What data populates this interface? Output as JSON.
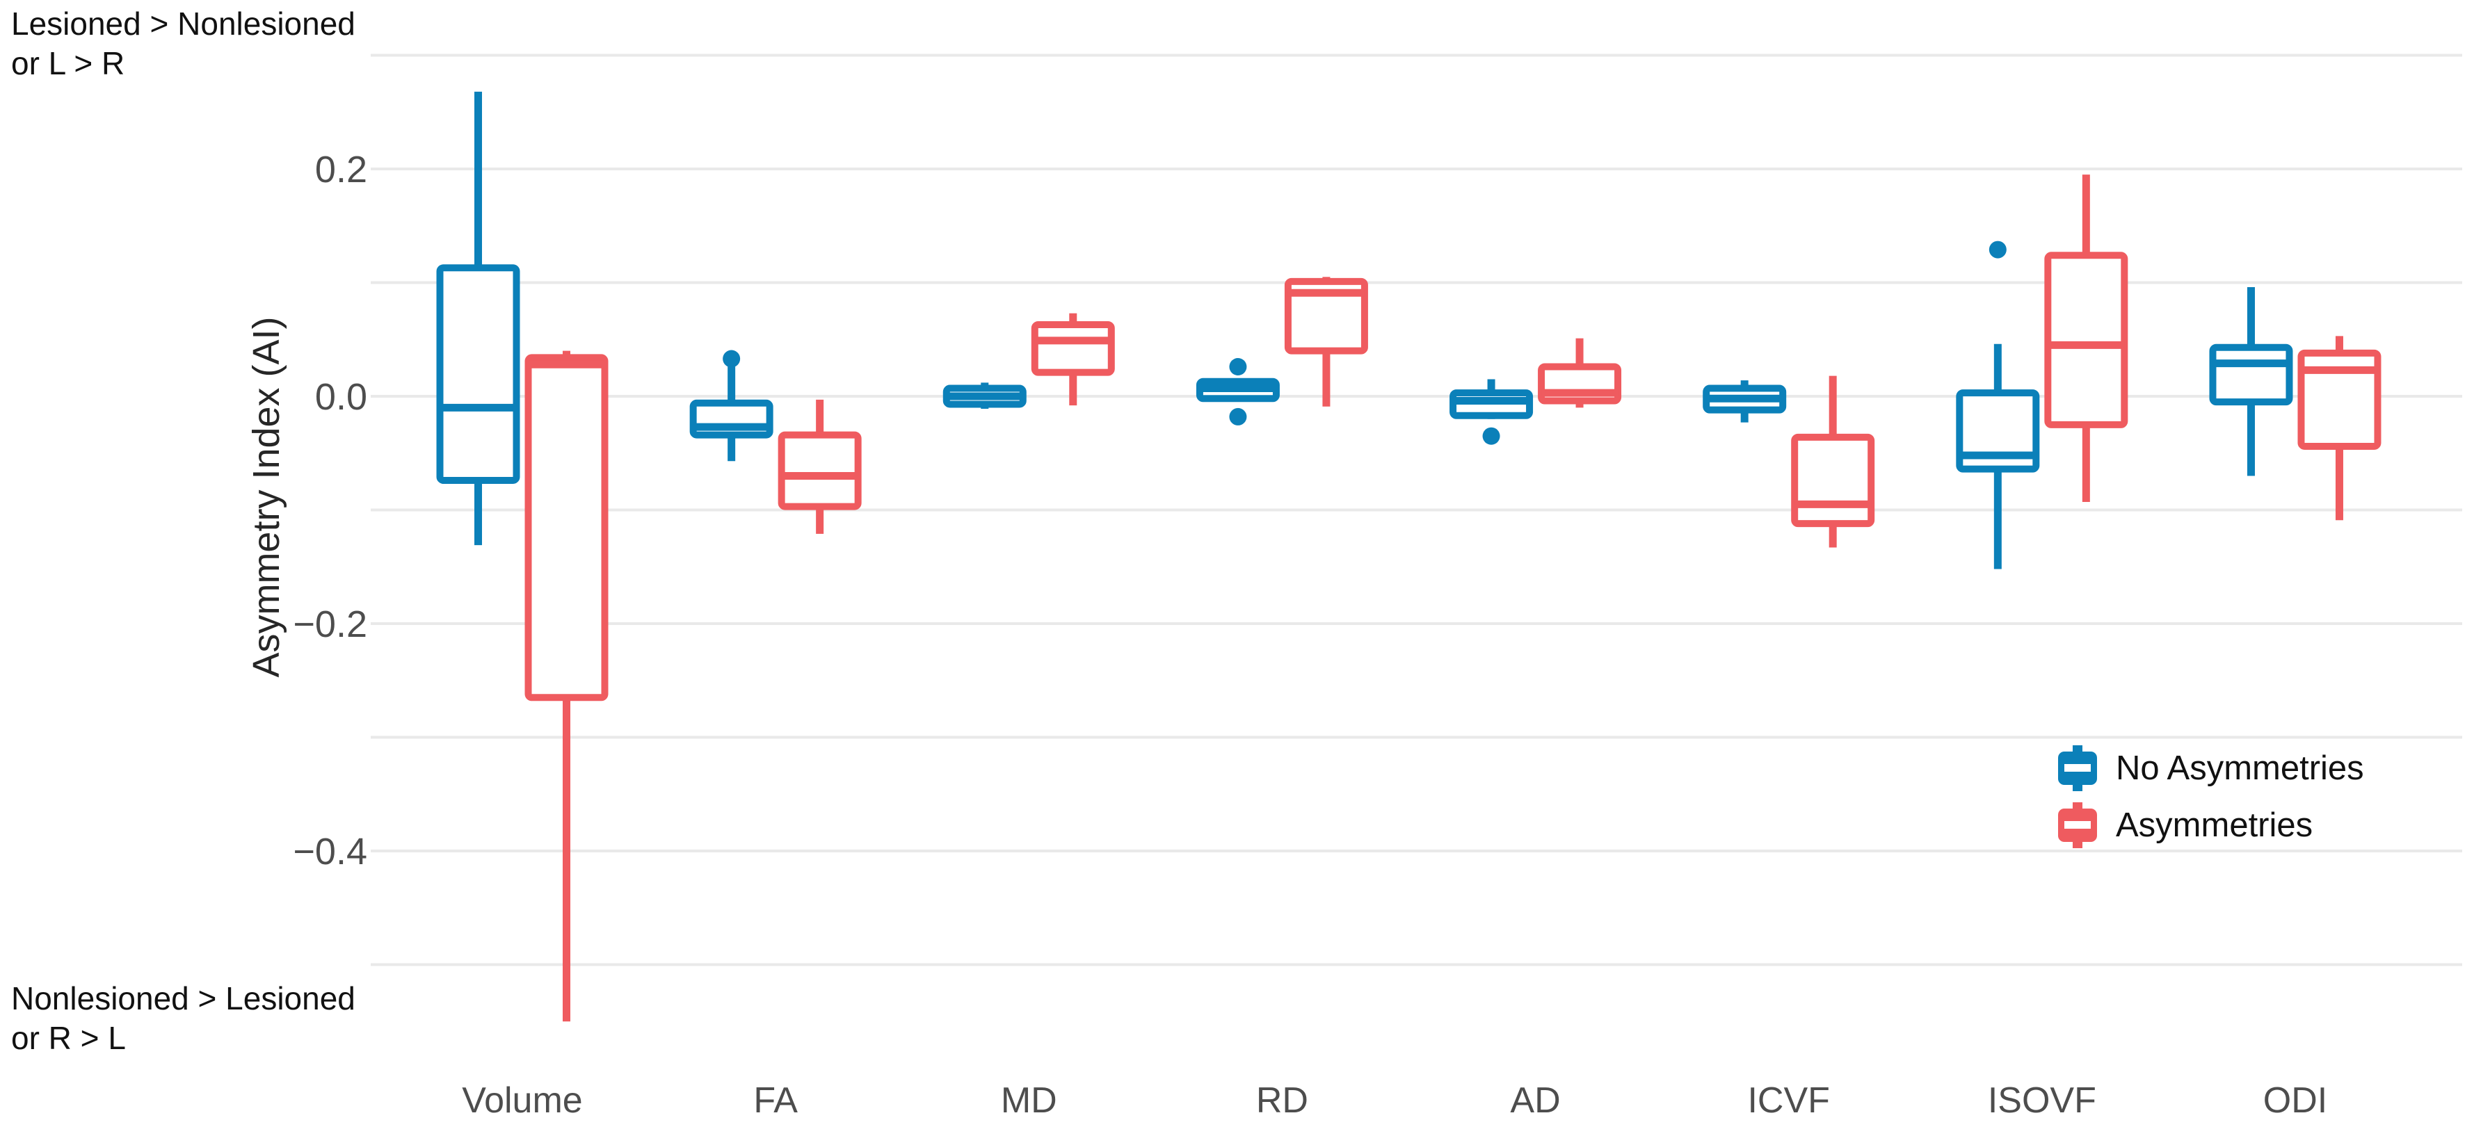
{
  "annotations": {
    "top_left_line1": "Lesioned > Nonlesioned",
    "top_left_line2": "or L > R",
    "bottom_left_line1": "Nonlesioned > Lesioned",
    "bottom_left_line2": "or R > L"
  },
  "legend": {
    "items": [
      {
        "label": "No Asymmetries",
        "color": "#0b80b9"
      },
      {
        "label": "Asymmetries",
        "color": "#ef5b5f"
      }
    ]
  },
  "colors": {
    "no_asymmetries": "#0b80b9",
    "asymmetries": "#ef5b5f",
    "gridline": "#e9e9e9",
    "axis_text": "#4d4d4d",
    "annotation_text": "#111111"
  },
  "chart_data": {
    "type": "boxplot",
    "title": "",
    "xlabel": "",
    "ylabel": "Asymmetry Index (AI)",
    "ylim": [
      -0.62,
      0.31
    ],
    "grid": true,
    "gridline_values": [
      0.3,
      0.2,
      0.1,
      0.0,
      -0.1,
      -0.2,
      -0.3,
      -0.4,
      -0.5
    ],
    "yticks": [
      {
        "value": 0.2,
        "label": "0.2"
      },
      {
        "value": 0.0,
        "label": "0.0"
      },
      {
        "value": -0.2,
        "label": "−0.2"
      },
      {
        "value": -0.4,
        "label": "−0.4"
      }
    ],
    "categories": [
      "Volume",
      "FA",
      "MD",
      "RD",
      "AD",
      "ICVF",
      "ISOVF",
      "ODI"
    ],
    "legend_position": "right-middle",
    "series": [
      {
        "name": "No Asymmetries",
        "color": "#0b80b9",
        "boxes": [
          {
            "category": "Volume",
            "whisker_low": -0.131,
            "q1": -0.074,
            "median": -0.01,
            "q3": 0.113,
            "whisker_high": 0.268,
            "outliers": []
          },
          {
            "category": "FA",
            "whisker_low": -0.057,
            "q1": -0.034,
            "median": -0.027,
            "q3": -0.006,
            "whisker_high": 0.026,
            "outliers": [
              0.033
            ]
          },
          {
            "category": "MD",
            "whisker_low": -0.011,
            "q1": -0.007,
            "median": 0.0,
            "q3": 0.007,
            "whisker_high": 0.012,
            "outliers": []
          },
          {
            "category": "RD",
            "whisker_low": -0.004,
            "q1": -0.002,
            "median": 0.007,
            "q3": 0.013,
            "whisker_high": 0.015,
            "outliers": [
              0.026,
              -0.018
            ]
          },
          {
            "category": "AD",
            "whisker_low": -0.02,
            "q1": -0.017,
            "median": -0.004,
            "q3": 0.003,
            "whisker_high": 0.015,
            "outliers": [
              -0.035
            ]
          },
          {
            "category": "ICVF",
            "whisker_low": -0.023,
            "q1": -0.012,
            "median": -0.002,
            "q3": 0.007,
            "whisker_high": 0.014,
            "outliers": []
          },
          {
            "category": "ISOVF",
            "whisker_low": -0.152,
            "q1": -0.064,
            "median": -0.052,
            "q3": 0.003,
            "whisker_high": 0.046,
            "outliers": [
              0.129
            ]
          },
          {
            "category": "ODI",
            "whisker_low": -0.07,
            "q1": -0.005,
            "median": 0.029,
            "q3": 0.043,
            "whisker_high": 0.096,
            "outliers": []
          }
        ]
      },
      {
        "name": "Asymmetries",
        "color": "#ef5b5f",
        "boxes": [
          {
            "category": "Volume",
            "whisker_low": -0.55,
            "q1": -0.265,
            "median": 0.028,
            "q3": 0.034,
            "whisker_high": 0.04,
            "outliers": []
          },
          {
            "category": "FA",
            "whisker_low": -0.121,
            "q1": -0.097,
            "median": -0.07,
            "q3": -0.034,
            "whisker_high": -0.003,
            "outliers": []
          },
          {
            "category": "MD",
            "whisker_low": -0.008,
            "q1": 0.021,
            "median": 0.049,
            "q3": 0.063,
            "whisker_high": 0.073,
            "outliers": []
          },
          {
            "category": "RD",
            "whisker_low": -0.009,
            "q1": 0.04,
            "median": 0.091,
            "q3": 0.101,
            "whisker_high": 0.105,
            "outliers": []
          },
          {
            "category": "AD",
            "whisker_low": -0.01,
            "q1": -0.004,
            "median": 0.003,
            "q3": 0.026,
            "whisker_high": 0.051,
            "outliers": []
          },
          {
            "category": "ICVF",
            "whisker_low": -0.133,
            "q1": -0.112,
            "median": -0.095,
            "q3": -0.036,
            "whisker_high": 0.018,
            "outliers": []
          },
          {
            "category": "ISOVF",
            "whisker_low": -0.093,
            "q1": -0.025,
            "median": 0.045,
            "q3": 0.124,
            "whisker_high": 0.195,
            "outliers": []
          },
          {
            "category": "ODI",
            "whisker_low": -0.109,
            "q1": -0.044,
            "median": 0.023,
            "q3": 0.038,
            "whisker_high": 0.053,
            "outliers": []
          }
        ]
      }
    ]
  }
}
